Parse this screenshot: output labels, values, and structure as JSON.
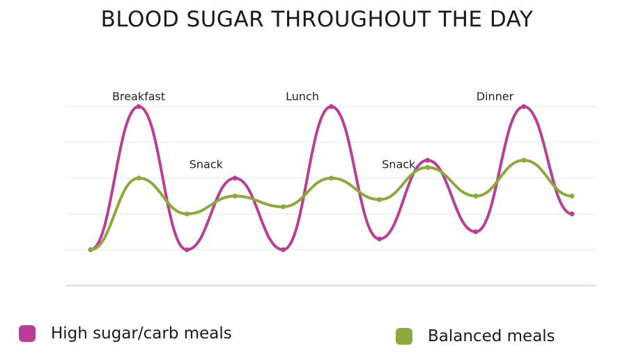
{
  "chart_data": {
    "type": "line",
    "title": "BLOOD SUGAR THROUGHOUT THE DAY",
    "xlabel": "",
    "ylabel": "",
    "x": [
      0,
      1,
      2,
      3,
      4,
      5,
      6,
      7,
      8,
      9,
      10
    ],
    "ylim": [
      0,
      5
    ],
    "grid": true,
    "annotations": [
      {
        "text": "Breakfast",
        "x": 1,
        "y": 5
      },
      {
        "text": "Snack",
        "x": 2.4,
        "y": 3.1
      },
      {
        "text": "Lunch",
        "x": 4.4,
        "y": 5
      },
      {
        "text": "Snack",
        "x": 6.4,
        "y": 3.1
      },
      {
        "text": "Dinner",
        "x": 8.4,
        "y": 5
      }
    ],
    "series": [
      {
        "name": "High sugar/carb meals",
        "color": "#bc3d97",
        "values": [
          1.0,
          5.0,
          1.0,
          3.0,
          1.0,
          5.0,
          1.3,
          3.5,
          1.5,
          5.0,
          2.0
        ]
      },
      {
        "name": "Balanced meals",
        "color": "#8aaa3a",
        "values": [
          1.0,
          3.0,
          2.0,
          2.5,
          2.2,
          3.0,
          2.4,
          3.3,
          2.5,
          3.5,
          2.5
        ]
      }
    ],
    "legend": "bottom"
  }
}
